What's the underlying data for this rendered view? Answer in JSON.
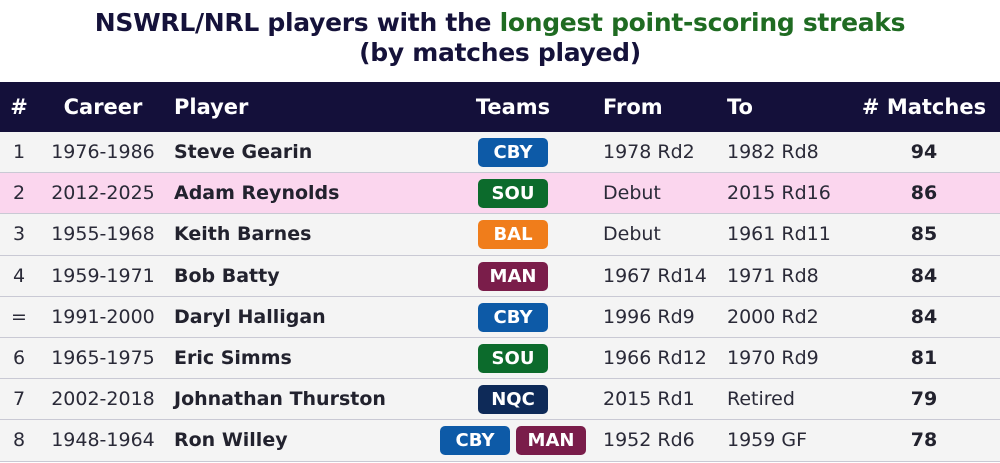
{
  "title": {
    "line1_prefix": "NSWRL/NRL players with the ",
    "line1_accent": "longest point-scoring streaks",
    "line2": "(by matches played)"
  },
  "colors": {
    "header_bg": "#14103a",
    "accent_green": "#1f6b22",
    "highlight_row": "#fbd6ee",
    "teams": {
      "CBY": "#0d5aa7",
      "SOU": "#0c6b2c",
      "BAL": "#f07d1b",
      "MAN": "#7a1d4a",
      "NQC": "#0e2a58"
    }
  },
  "chart_data": {
    "type": "table",
    "columns": [
      "#",
      "Career",
      "Player",
      "Teams",
      "From",
      "To",
      "# Matches"
    ],
    "rows": [
      {
        "rank": "1",
        "career": "1976-1986",
        "player": "Steve Gearin",
        "teams": [
          "CBY"
        ],
        "from": "1978 Rd2",
        "to": "1982 Rd8",
        "matches": 94,
        "highlight": false
      },
      {
        "rank": "2",
        "career": "2012-2025",
        "player": "Adam Reynolds",
        "teams": [
          "SOU"
        ],
        "from": "Debut",
        "to": "2015 Rd16",
        "matches": 86,
        "highlight": true
      },
      {
        "rank": "3",
        "career": "1955-1968",
        "player": "Keith Barnes",
        "teams": [
          "BAL"
        ],
        "from": "Debut",
        "to": "1961 Rd11",
        "matches": 85,
        "highlight": false
      },
      {
        "rank": "4",
        "career": "1959-1971",
        "player": "Bob Batty",
        "teams": [
          "MAN"
        ],
        "from": "1967 Rd14",
        "to": "1971 Rd8",
        "matches": 84,
        "highlight": false
      },
      {
        "rank": "=",
        "career": "1991-2000",
        "player": "Daryl Halligan",
        "teams": [
          "CBY"
        ],
        "from": "1996 Rd9",
        "to": "2000 Rd2",
        "matches": 84,
        "highlight": false
      },
      {
        "rank": "6",
        "career": "1965-1975",
        "player": "Eric Simms",
        "teams": [
          "SOU"
        ],
        "from": "1966 Rd12",
        "to": "1970 Rd9",
        "matches": 81,
        "highlight": false
      },
      {
        "rank": "7",
        "career": "2002-2018",
        "player": "Johnathan Thurston",
        "teams": [
          "NQC"
        ],
        "from": "2015 Rd1",
        "to": "Retired",
        "matches": 79,
        "highlight": false
      },
      {
        "rank": "8",
        "career": "1948-1964",
        "player": "Ron Willey",
        "teams": [
          "CBY",
          "MAN"
        ],
        "from": "1952 Rd6",
        "to": "1959 GF",
        "matches": 78,
        "highlight": false
      }
    ]
  }
}
